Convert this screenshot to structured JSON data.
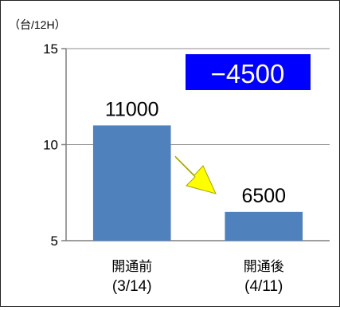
{
  "chart_data": {
    "type": "bar",
    "unit_label": "（台/12H）",
    "categories": [
      {
        "name": "開通前",
        "date": "(3/14)"
      },
      {
        "name": "開通後",
        "date": "(4/11)"
      }
    ],
    "values": [
      11000,
      6500
    ],
    "value_labels": [
      "11000",
      "6500"
    ],
    "yticks": [
      "15",
      "10",
      "5"
    ],
    "ylim": [
      5,
      15
    ],
    "grid": true,
    "bar_color": "#4f81bd",
    "difference_badge": "−4500",
    "badge_bg": "#0000ff",
    "badge_text_color": "#ffffff",
    "arrow_color": "#ffff00",
    "arrow_stroke": "#a6a600"
  }
}
